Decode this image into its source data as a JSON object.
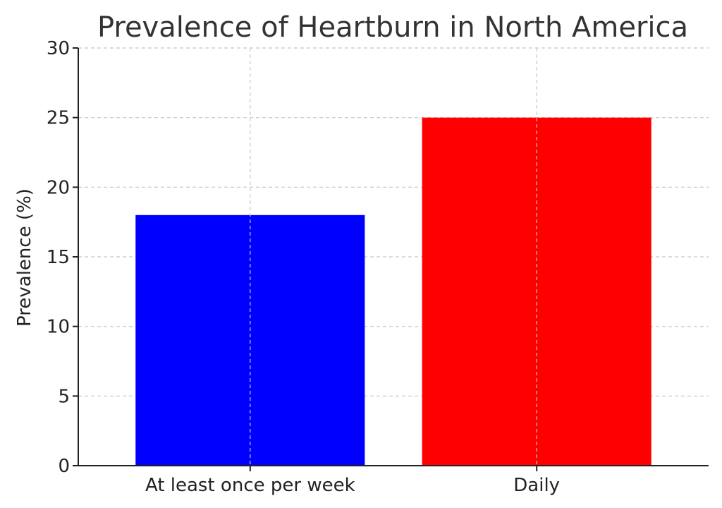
{
  "chart_data": {
    "type": "bar",
    "title": "Prevalence of Heartburn in North America",
    "xlabel": "",
    "ylabel": "Prevalence (%)",
    "categories": [
      "At least once per week",
      "Daily"
    ],
    "values": [
      18,
      25
    ],
    "colors": [
      "#0000ff",
      "#ff0000"
    ],
    "ylim": [
      0,
      30
    ],
    "yticks": [
      0,
      5,
      10,
      15,
      20,
      25,
      30
    ],
    "grid": true
  }
}
